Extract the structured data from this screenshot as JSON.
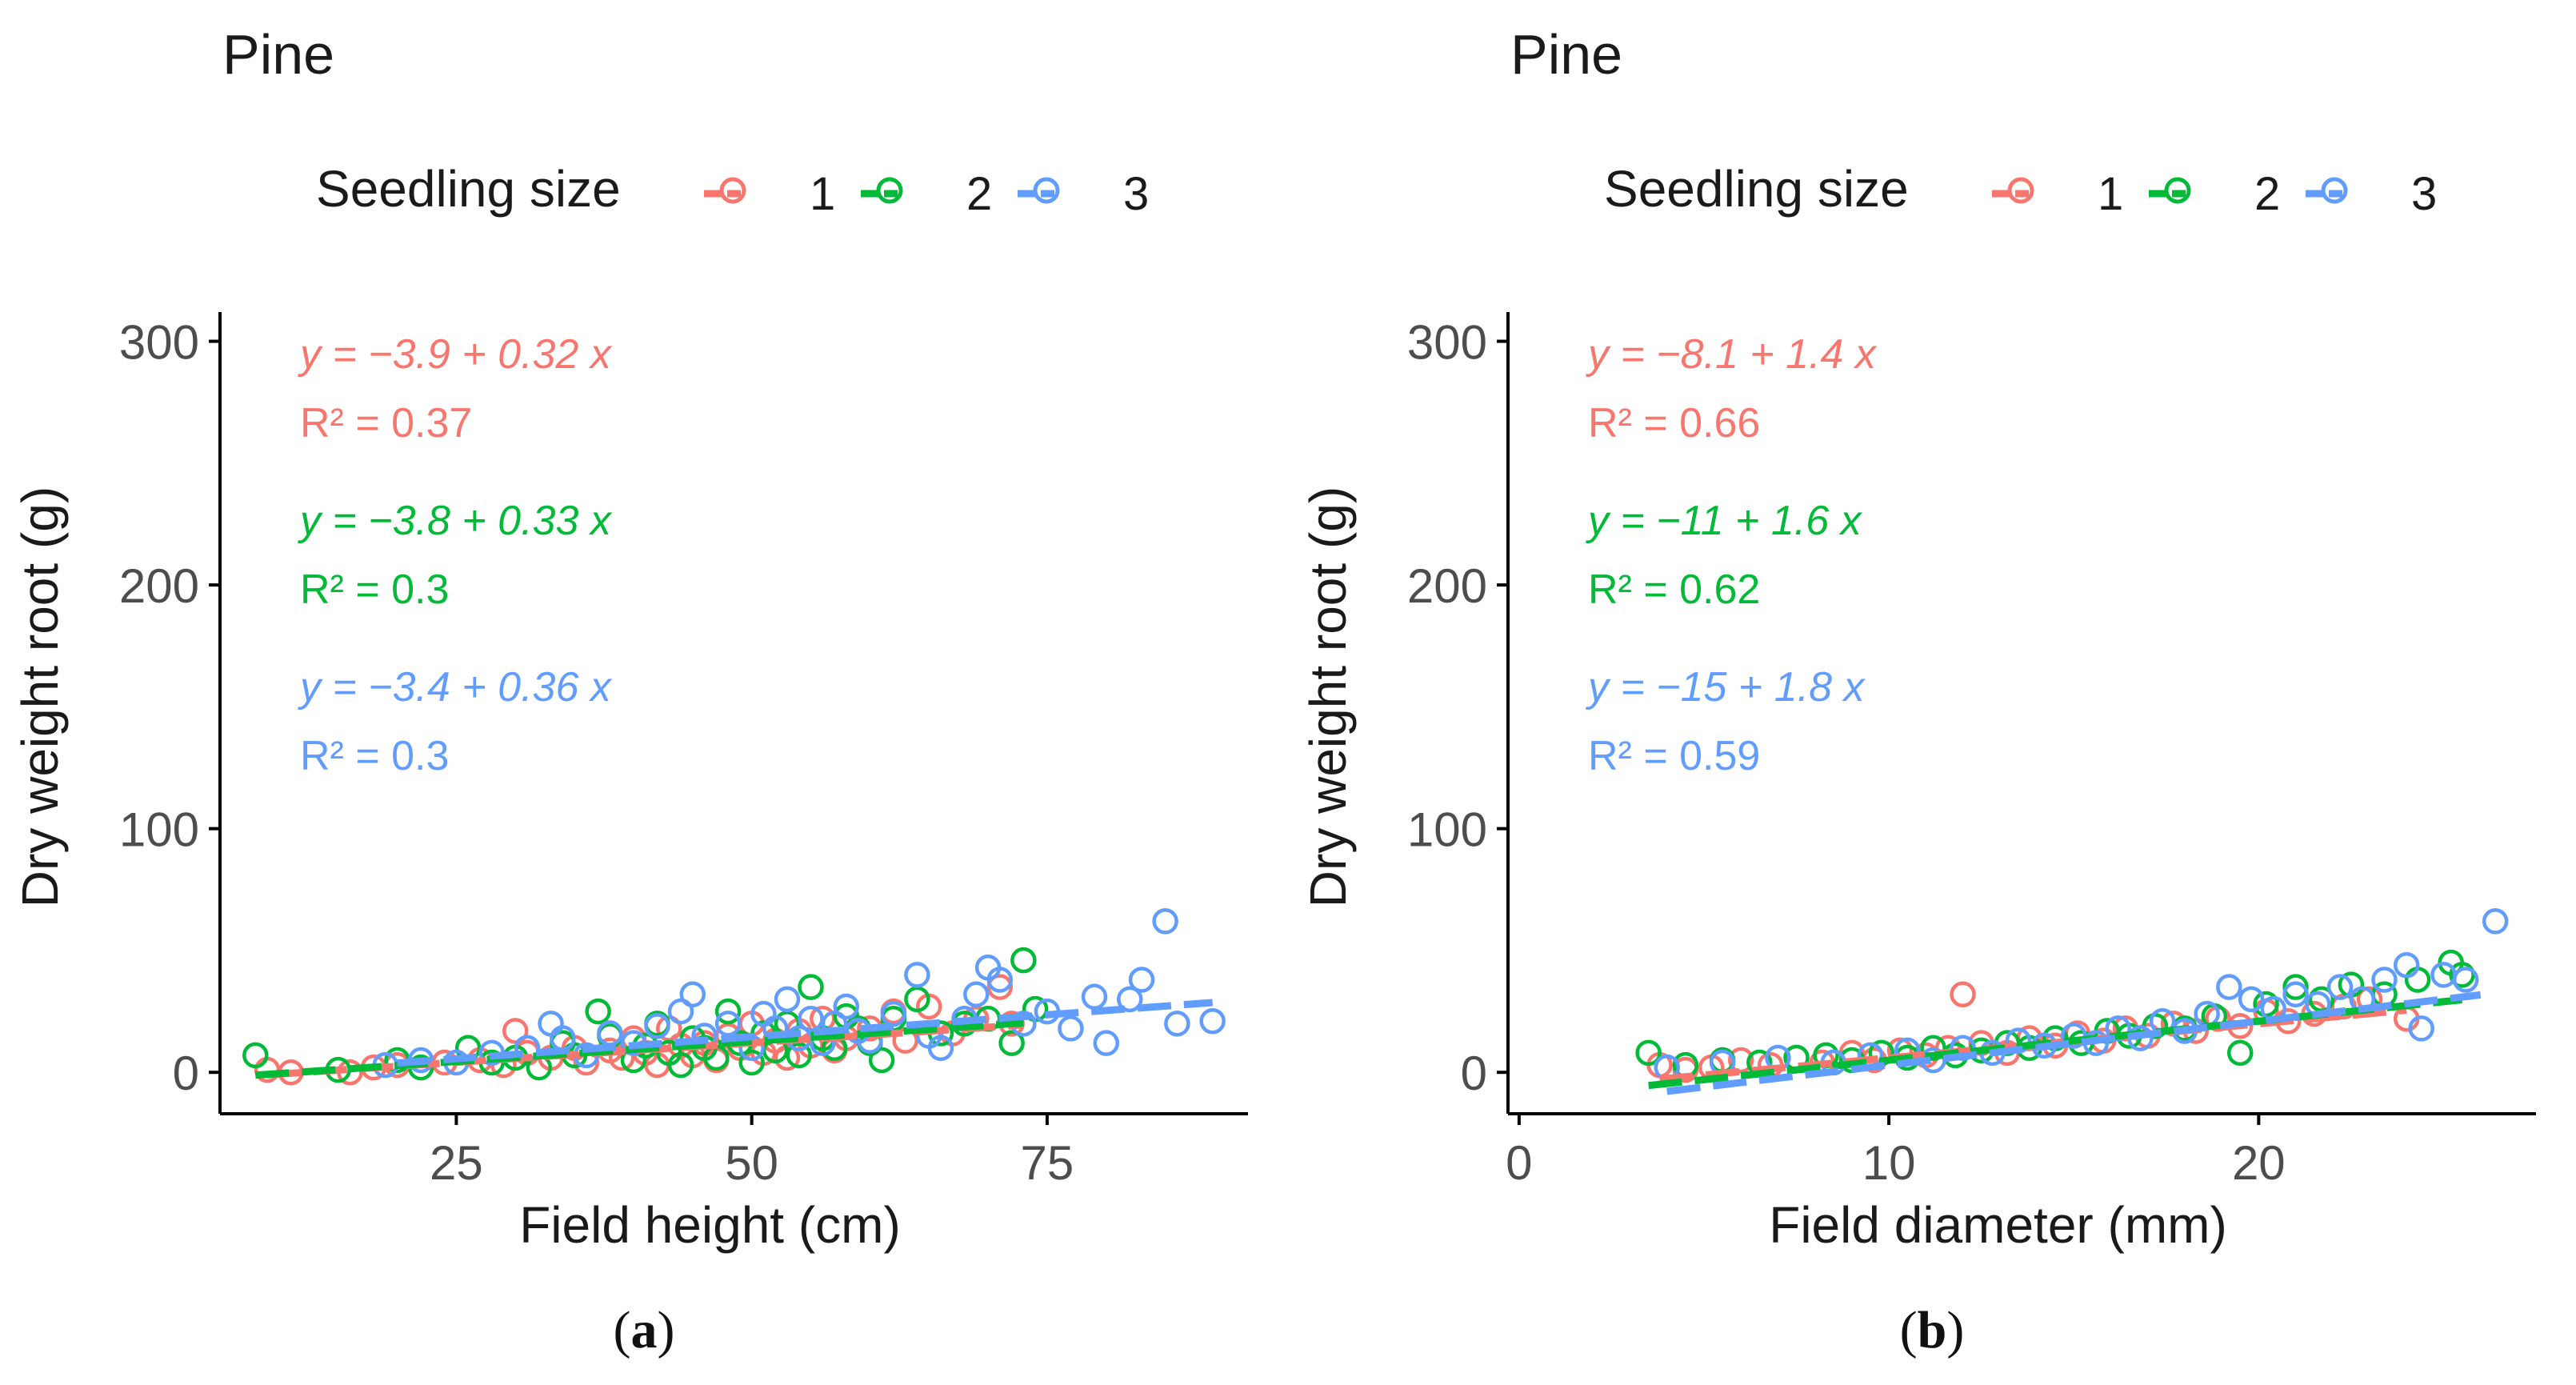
{
  "figure": {
    "captions": [
      "(a)",
      "(b)"
    ]
  },
  "colors": {
    "1": "#F8766D",
    "2": "#00BA38",
    "3": "#619CFF",
    "axis": "#000000",
    "text": "#1a1a1a",
    "tick_label": "#4d4d4d"
  },
  "chart_data": [
    {
      "type": "scatter",
      "title": "Pine",
      "legend_title": "Seedling size",
      "legend": [
        "1",
        "2",
        "3"
      ],
      "legend_position": "top",
      "xlabel": "Field height (cm)",
      "ylabel": "Dry weight root (g)",
      "xlim": [
        5,
        92
      ],
      "ylim": [
        -17,
        312
      ],
      "xticks": [
        25,
        50,
        75
      ],
      "yticks": [
        0,
        100,
        200,
        300
      ],
      "grid": false,
      "annotations": [
        {
          "series": "1",
          "equation": "y = −3.9 + 0.32 x",
          "r2": "R² = 0.37"
        },
        {
          "series": "2",
          "equation": "y = −3.8 + 0.33 x",
          "r2": "R² = 0.3"
        },
        {
          "series": "3",
          "equation": "y = −3.4 + 0.36 x",
          "r2": "R² = 0.3"
        }
      ],
      "series": [
        {
          "name": "1",
          "fit": {
            "intercept": -3.9,
            "slope": 0.32,
            "x_range": [
              9,
              73
            ]
          },
          "points": [
            [
              9,
              1
            ],
            [
              11,
              0
            ],
            [
              16,
              0
            ],
            [
              18,
              2
            ],
            [
              20,
              3
            ],
            [
              24,
              4
            ],
            [
              27,
              5
            ],
            [
              29,
              3
            ],
            [
              30,
              17
            ],
            [
              31,
              8
            ],
            [
              33,
              6
            ],
            [
              35,
              10
            ],
            [
              36,
              4
            ],
            [
              38,
              9
            ],
            [
              39,
              6
            ],
            [
              40,
              14
            ],
            [
              41,
              8
            ],
            [
              42,
              3
            ],
            [
              43,
              18
            ],
            [
              44,
              11
            ],
            [
              45,
              7
            ],
            [
              46,
              12
            ],
            [
              47,
              5
            ],
            [
              48,
              15
            ],
            [
              49,
              10
            ],
            [
              50,
              20
            ],
            [
              51,
              8
            ],
            [
              52,
              13
            ],
            [
              53,
              6
            ],
            [
              54,
              17
            ],
            [
              55,
              11
            ],
            [
              56,
              22
            ],
            [
              57,
              9
            ],
            [
              58,
              14
            ],
            [
              60,
              18
            ],
            [
              62,
              25
            ],
            [
              63,
              13
            ],
            [
              65,
              27
            ],
            [
              67,
              16
            ],
            [
              69,
              22
            ],
            [
              71,
              35
            ],
            [
              72,
              20
            ]
          ]
        },
        {
          "name": "2",
          "fit": {
            "intercept": -3.8,
            "slope": 0.33,
            "x_range": [
              8,
              73
            ]
          },
          "points": [
            [
              8,
              7
            ],
            [
              15,
              1
            ],
            [
              20,
              5
            ],
            [
              22,
              2
            ],
            [
              26,
              10
            ],
            [
              28,
              4
            ],
            [
              30,
              6
            ],
            [
              32,
              2
            ],
            [
              34,
              12
            ],
            [
              35,
              7
            ],
            [
              37,
              25
            ],
            [
              38,
              15
            ],
            [
              40,
              5
            ],
            [
              41,
              11
            ],
            [
              42,
              20
            ],
            [
              43,
              8
            ],
            [
              44,
              3
            ],
            [
              45,
              14
            ],
            [
              46,
              10
            ],
            [
              47,
              6
            ],
            [
              48,
              25
            ],
            [
              49,
              12
            ],
            [
              50,
              4
            ],
            [
              51,
              16
            ],
            [
              52,
              9
            ],
            [
              53,
              20
            ],
            [
              54,
              7
            ],
            [
              55,
              35
            ],
            [
              56,
              14
            ],
            [
              57,
              10
            ],
            [
              58,
              23
            ],
            [
              59,
              18
            ],
            [
              60,
              12
            ],
            [
              61,
              5
            ],
            [
              62,
              22
            ],
            [
              64,
              30
            ],
            [
              66,
              16
            ],
            [
              68,
              20
            ],
            [
              70,
              22
            ],
            [
              72,
              12
            ],
            [
              73,
              46
            ],
            [
              74,
              26
            ]
          ]
        },
        {
          "name": "3",
          "fit": {
            "intercept": -3.4,
            "slope": 0.36,
            "x_range": [
              20,
              89
            ]
          },
          "points": [
            [
              19,
              3
            ],
            [
              22,
              5
            ],
            [
              25,
              4
            ],
            [
              28,
              8
            ],
            [
              31,
              10
            ],
            [
              33,
              20
            ],
            [
              34,
              14
            ],
            [
              36,
              7
            ],
            [
              38,
              16
            ],
            [
              40,
              12
            ],
            [
              42,
              19
            ],
            [
              44,
              25
            ],
            [
              45,
              32
            ],
            [
              46,
              15
            ],
            [
              48,
              20
            ],
            [
              50,
              10
            ],
            [
              51,
              24
            ],
            [
              52,
              18
            ],
            [
              53,
              30
            ],
            [
              54,
              14
            ],
            [
              55,
              22
            ],
            [
              56,
              12
            ],
            [
              57,
              20
            ],
            [
              58,
              27
            ],
            [
              59,
              17
            ],
            [
              60,
              13
            ],
            [
              62,
              24
            ],
            [
              64,
              40
            ],
            [
              65,
              15
            ],
            [
              66,
              10
            ],
            [
              68,
              22
            ],
            [
              69,
              32
            ],
            [
              70,
              43
            ],
            [
              71,
              38
            ],
            [
              73,
              20
            ],
            [
              75,
              25
            ],
            [
              77,
              18
            ],
            [
              79,
              31
            ],
            [
              80,
              12
            ],
            [
              82,
              30
            ],
            [
              83,
              38
            ],
            [
              85,
              62
            ],
            [
              86,
              20
            ],
            [
              89,
              21
            ]
          ]
        }
      ]
    },
    {
      "type": "scatter",
      "title": "Pine",
      "legend_title": "Seedling size",
      "legend": [
        "1",
        "2",
        "3"
      ],
      "legend_position": "top",
      "xlabel": "Field diameter (mm)",
      "ylabel": "Dry weight root (g)",
      "xlim": [
        -0.3,
        27.5
      ],
      "ylim": [
        -17,
        312
      ],
      "xticks": [
        0,
        10,
        20
      ],
      "yticks": [
        0,
        100,
        200,
        300
      ],
      "grid": false,
      "annotations": [
        {
          "series": "1",
          "equation": "y = −8.1 + 1.4 x",
          "r2": "R² = 0.66"
        },
        {
          "series": "2",
          "equation": "y = −11 + 1.6 x",
          "r2": "R² = 0.62"
        },
        {
          "series": "3",
          "equation": "y = −15 + 1.8 x",
          "r2": "R² = 0.59"
        }
      ],
      "series": [
        {
          "name": "1",
          "fit": {
            "intercept": -8.1,
            "slope": 1.4,
            "x_range": [
              3.8,
              24
            ]
          },
          "points": [
            [
              3.8,
              3
            ],
            [
              4.5,
              1
            ],
            [
              5.2,
              2
            ],
            [
              6,
              5
            ],
            [
              6.8,
              3
            ],
            [
              7.5,
              6
            ],
            [
              8.2,
              4
            ],
            [
              9,
              8
            ],
            [
              9.6,
              5
            ],
            [
              10.3,
              9
            ],
            [
              11,
              7
            ],
            [
              11.6,
              10
            ],
            [
              12,
              32
            ],
            [
              12.5,
              12
            ],
            [
              13.2,
              8
            ],
            [
              13.8,
              14
            ],
            [
              14.5,
              11
            ],
            [
              15.1,
              16
            ],
            [
              15.8,
              13
            ],
            [
              16.4,
              18
            ],
            [
              17,
              15
            ],
            [
              17.7,
              20
            ],
            [
              18.3,
              17
            ],
            [
              18.9,
              22
            ],
            [
              19.5,
              19
            ],
            [
              20.2,
              25
            ],
            [
              20.8,
              21
            ],
            [
              21.5,
              24
            ],
            [
              22.3,
              27
            ],
            [
              23,
              30
            ],
            [
              24,
              22
            ]
          ]
        },
        {
          "name": "2",
          "fit": {
            "intercept": -11,
            "slope": 1.6,
            "x_range": [
              3.5,
              25.5
            ]
          },
          "points": [
            [
              3.5,
              8
            ],
            [
              4.5,
              3
            ],
            [
              5.5,
              5
            ],
            [
              6.5,
              4
            ],
            [
              7.5,
              6
            ],
            [
              8.3,
              7
            ],
            [
              9,
              5
            ],
            [
              9.8,
              8
            ],
            [
              10.5,
              6
            ],
            [
              11.2,
              10
            ],
            [
              11.8,
              7
            ],
            [
              12.5,
              9
            ],
            [
              13.2,
              12
            ],
            [
              13.8,
              10
            ],
            [
              14.5,
              14
            ],
            [
              15.2,
              12
            ],
            [
              15.9,
              17
            ],
            [
              16.5,
              15
            ],
            [
              17.2,
              19
            ],
            [
              18,
              18
            ],
            [
              18.8,
              23
            ],
            [
              19.5,
              8
            ],
            [
              20.2,
              28
            ],
            [
              21,
              35
            ],
            [
              21.7,
              30
            ],
            [
              22.5,
              36
            ],
            [
              23.4,
              32
            ],
            [
              24.3,
              38
            ],
            [
              25.2,
              45
            ],
            [
              25.5,
              40
            ]
          ]
        },
        {
          "name": "3",
          "fit": {
            "intercept": -15,
            "slope": 1.8,
            "x_range": [
              4,
              26
            ]
          },
          "points": [
            [
              4,
              2
            ],
            [
              5.5,
              4
            ],
            [
              7,
              6
            ],
            [
              8.5,
              4
            ],
            [
              9.5,
              7
            ],
            [
              10.5,
              9
            ],
            [
              11.2,
              5
            ],
            [
              12,
              10
            ],
            [
              12.8,
              8
            ],
            [
              13.5,
              13
            ],
            [
              14.2,
              11
            ],
            [
              15,
              15
            ],
            [
              15.6,
              12
            ],
            [
              16.2,
              18
            ],
            [
              16.8,
              14
            ],
            [
              17.4,
              21
            ],
            [
              18,
              17
            ],
            [
              18.6,
              24
            ],
            [
              19.2,
              35
            ],
            [
              19.8,
              30
            ],
            [
              20.4,
              26
            ],
            [
              21,
              32
            ],
            [
              21.6,
              28
            ],
            [
              22.2,
              35
            ],
            [
              22.8,
              30
            ],
            [
              23.4,
              38
            ],
            [
              24,
              44
            ],
            [
              24.4,
              18
            ],
            [
              25,
              40
            ],
            [
              25.6,
              38
            ],
            [
              26.4,
              62
            ]
          ]
        }
      ]
    }
  ]
}
